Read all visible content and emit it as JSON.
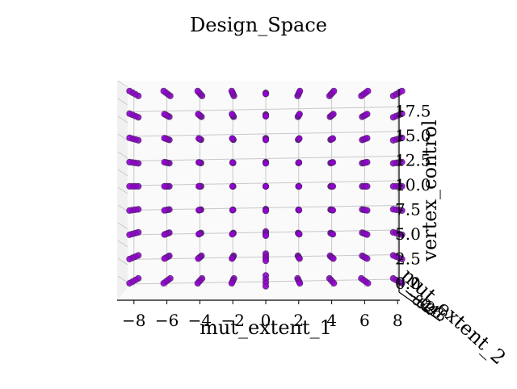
{
  "chart_data": {
    "type": "scatter",
    "projection": "3d",
    "title": "Design_Space",
    "xlabel": "mut_extent_1",
    "ylabel": "mut_extent_2",
    "zlabel": "vertex_control",
    "x_ticks": [
      "−8",
      "−6",
      "−4",
      "−2",
      "0",
      "2",
      "4",
      "6",
      "8"
    ],
    "z_ticks": [
      "0.0",
      "2.5",
      "5.0",
      "7.5",
      "10.0",
      "12.5",
      "15.0",
      "17.5"
    ],
    "y_ticks": [
      "−8",
      "−6",
      "−4",
      "−2",
      "0",
      "2",
      "4",
      "6",
      "8"
    ],
    "xlim": [
      -9,
      9
    ],
    "zlim": [
      -0.5,
      19
    ],
    "grid": true,
    "marker_color": "#9400d3",
    "marker_edge": "#5a1f7a",
    "x_values": [
      -8,
      -6,
      -4,
      -2,
      0,
      2,
      4,
      6,
      8
    ],
    "z_values": [
      0,
      2.4,
      4.8,
      7.2,
      9.6,
      12,
      14.4,
      16.8,
      19.2
    ]
  }
}
